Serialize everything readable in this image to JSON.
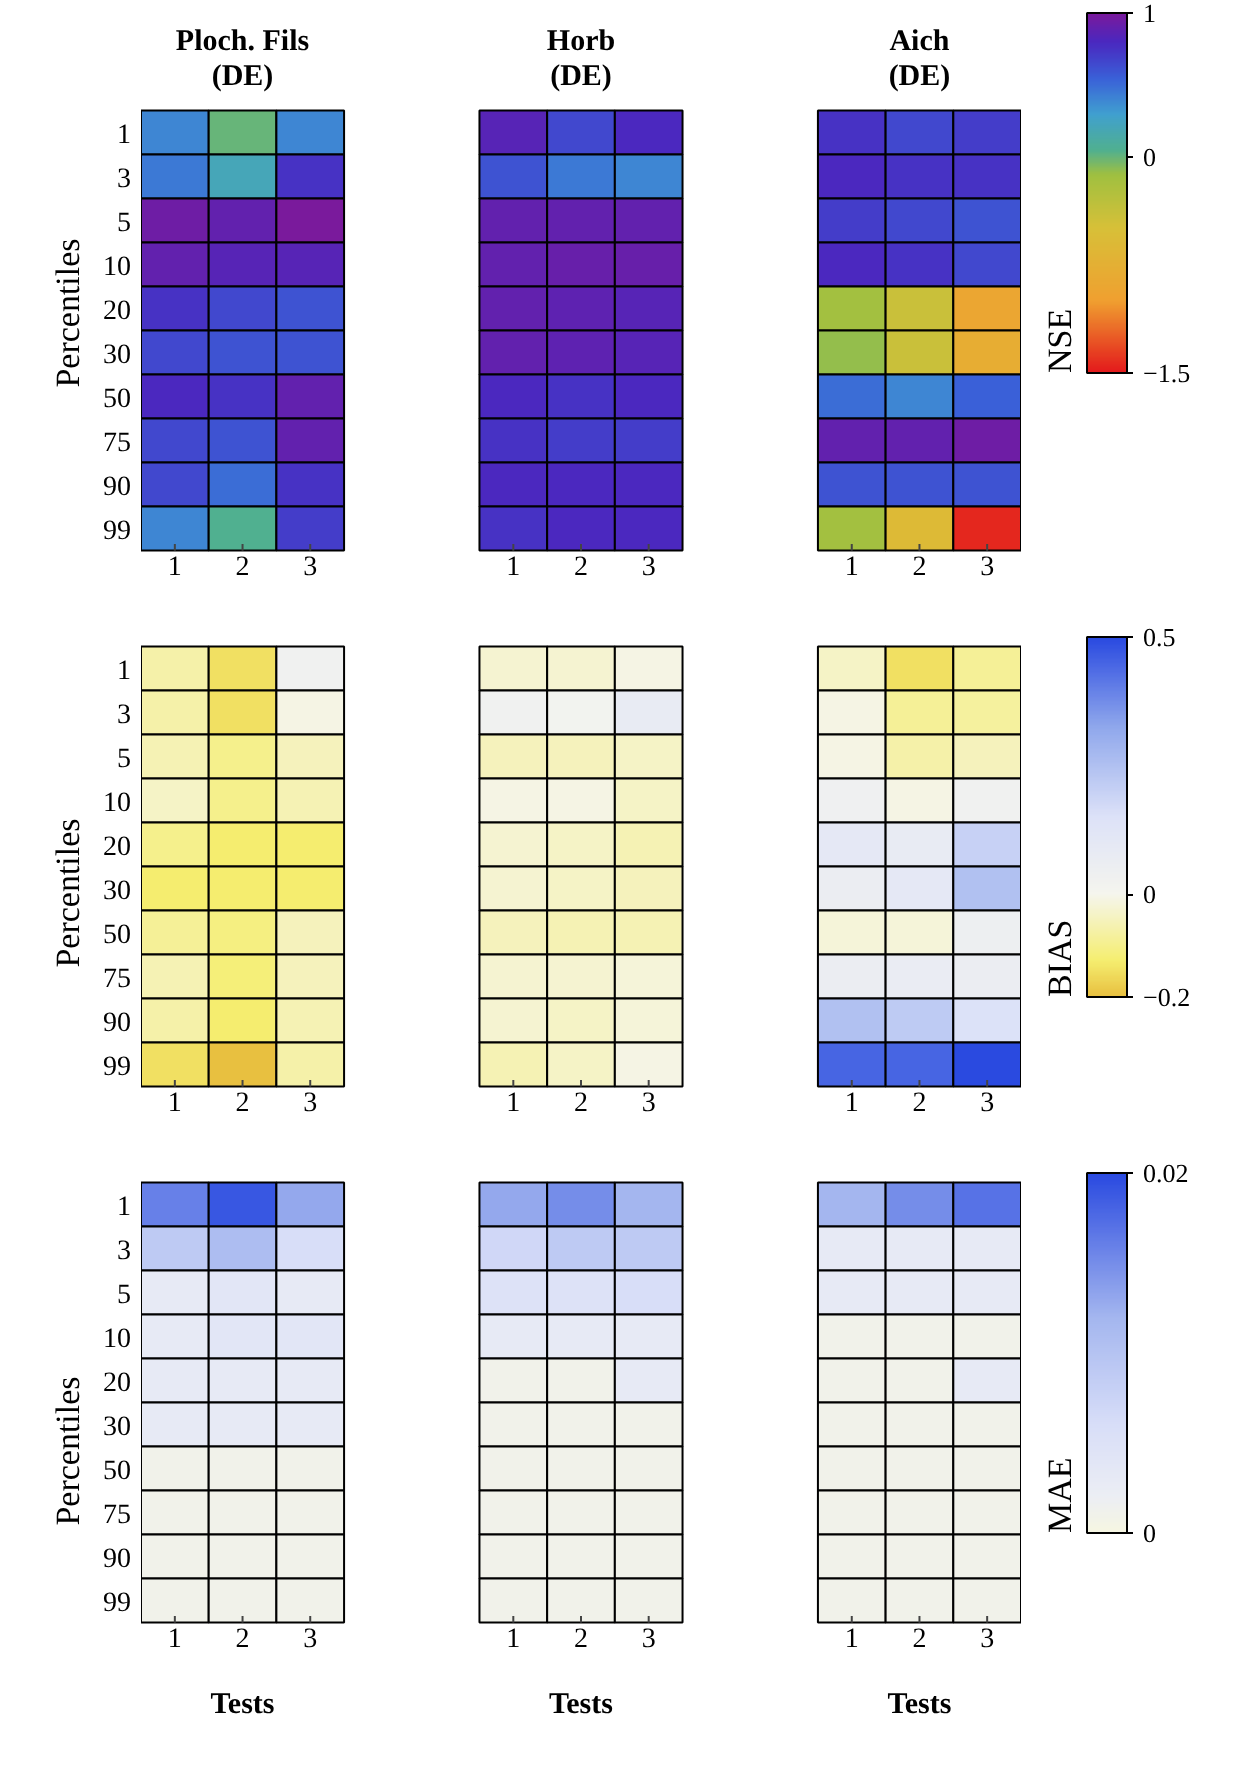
{
  "chart_data": [
    {
      "type": "heatmap",
      "ylabel": "Percentiles",
      "clabel": "NSE",
      "annotations": [
        "Ploch. Fils\n(DE)",
        "Horb\n(DE)",
        "Aich\n(DE)"
      ],
      "categories": [
        "1",
        "2",
        "3",
        null,
        null,
        "1",
        "2",
        "3",
        null,
        null,
        "1",
        "2",
        "3"
      ],
      "y_categories": [
        "1",
        "3",
        "5",
        "10",
        "20",
        "30",
        "50",
        "75",
        "90",
        "99"
      ],
      "clim": [
        -1.5,
        1
      ],
      "cticks": [
        -1.5,
        0,
        1
      ],
      "cells": [
        [
          0.4,
          0.0,
          0.4,
          null,
          null,
          0.85,
          0.65,
          0.8,
          null,
          null,
          0.75,
          0.65,
          0.7
        ],
        [
          0.45,
          0.2,
          0.75,
          null,
          null,
          0.6,
          0.45,
          0.4,
          null,
          null,
          0.8,
          0.75,
          0.75
        ],
        [
          0.95,
          0.9,
          1.0,
          null,
          null,
          0.9,
          0.9,
          0.9,
          null,
          null,
          0.7,
          0.65,
          0.6
        ],
        [
          0.9,
          0.85,
          0.85,
          null,
          null,
          0.9,
          0.92,
          0.92,
          null,
          null,
          0.8,
          0.75,
          0.65
        ],
        [
          0.75,
          0.65,
          0.6,
          null,
          null,
          0.9,
          0.88,
          0.85,
          null,
          null,
          -0.15,
          -0.4,
          -0.9
        ],
        [
          0.65,
          0.6,
          0.6,
          null,
          null,
          0.9,
          0.88,
          0.85,
          null,
          null,
          -0.1,
          -0.4,
          -0.8
        ],
        [
          0.8,
          0.75,
          0.9,
          null,
          null,
          0.8,
          0.75,
          0.8,
          null,
          null,
          0.5,
          0.4,
          0.55
        ],
        [
          0.65,
          0.6,
          0.9,
          null,
          null,
          0.75,
          0.7,
          0.7,
          null,
          null,
          0.9,
          0.9,
          0.95
        ],
        [
          0.65,
          0.5,
          0.75,
          null,
          null,
          0.8,
          0.8,
          0.8,
          null,
          null,
          0.6,
          0.6,
          0.6
        ],
        [
          0.4,
          0.05,
          0.7,
          null,
          null,
          0.75,
          0.8,
          0.8,
          null,
          null,
          -0.15,
          -0.6,
          -1.45
        ]
      ]
    },
    {
      "type": "heatmap",
      "ylabel": "Percentiles",
      "clabel": "BIAS",
      "categories": [
        "1",
        "2",
        "3",
        null,
        null,
        "1",
        "2",
        "3",
        null,
        null,
        "1",
        "2",
        "3"
      ],
      "y_categories": [
        "1",
        "3",
        "5",
        "10",
        "20",
        "30",
        "50",
        "75",
        "90",
        "99"
      ],
      "clim": [
        -0.2,
        0.5
      ],
      "cticks": [
        -0.2,
        0,
        0.5
      ],
      "cells": [
        [
          -0.07,
          -0.15,
          0.03,
          null,
          null,
          -0.03,
          -0.03,
          -0.01,
          null,
          null,
          -0.04,
          -0.15,
          -0.09
        ],
        [
          -0.07,
          -0.15,
          -0.01,
          null,
          null,
          0.03,
          0.02,
          0.08,
          null,
          null,
          -0.01,
          -0.09,
          -0.08
        ],
        [
          -0.06,
          -0.1,
          -0.05,
          null,
          null,
          -0.05,
          -0.05,
          -0.04,
          null,
          null,
          -0.01,
          -0.07,
          -0.05
        ],
        [
          -0.04,
          -0.1,
          -0.06,
          null,
          null,
          -0.01,
          -0.01,
          -0.04,
          null,
          null,
          0.04,
          -0.01,
          0.03
        ],
        [
          -0.1,
          -0.13,
          -0.13,
          null,
          null,
          -0.03,
          -0.04,
          -0.06,
          null,
          null,
          0.1,
          0.08,
          0.2
        ],
        [
          -0.13,
          -0.13,
          -0.13,
          null,
          null,
          -0.03,
          -0.04,
          -0.05,
          null,
          null,
          0.06,
          0.1,
          0.25
        ],
        [
          -0.09,
          -0.11,
          -0.05,
          null,
          null,
          -0.05,
          -0.06,
          -0.06,
          null,
          null,
          -0.02,
          -0.02,
          0.05
        ],
        [
          -0.06,
          -0.12,
          -0.05,
          null,
          null,
          -0.03,
          -0.03,
          -0.02,
          null,
          null,
          0.06,
          0.07,
          0.06
        ],
        [
          -0.07,
          -0.13,
          -0.06,
          null,
          null,
          -0.03,
          -0.04,
          -0.02,
          null,
          null,
          0.25,
          0.22,
          0.15
        ],
        [
          -0.15,
          -0.2,
          -0.07,
          null,
          null,
          -0.06,
          -0.04,
          -0.01,
          null,
          null,
          0.45,
          0.45,
          0.5
        ]
      ]
    },
    {
      "type": "heatmap",
      "ylabel": "Percentiles",
      "xlabel": "Tests",
      "clabel": "MAE",
      "categories": [
        "1",
        "2",
        "3",
        null,
        null,
        "1",
        "2",
        "3",
        null,
        null,
        "1",
        "2",
        "3"
      ],
      "y_categories": [
        "1",
        "3",
        "5",
        "10",
        "20",
        "30",
        "50",
        "75",
        "90",
        "99"
      ],
      "clim": [
        0,
        0.02
      ],
      "cticks": [
        0,
        0.02
      ],
      "cells": [
        [
          0.016,
          0.019,
          0.013,
          null,
          null,
          0.013,
          0.015,
          0.012,
          null,
          null,
          0.012,
          0.015,
          0.017
        ],
        [
          0.009,
          0.011,
          0.006,
          null,
          null,
          0.007,
          0.009,
          0.009,
          null,
          null,
          0.003,
          0.003,
          0.003
        ],
        [
          0.003,
          0.004,
          0.003,
          null,
          null,
          0.005,
          0.005,
          0.006,
          null,
          null,
          0.003,
          0.003,
          0.003
        ],
        [
          0.003,
          0.004,
          0.004,
          null,
          null,
          0.003,
          0.003,
          0.003,
          null,
          null,
          0.001,
          0.001,
          0.001
        ],
        [
          0.003,
          0.003,
          0.003,
          null,
          null,
          0.001,
          0.001,
          0.003,
          null,
          null,
          0.001,
          0.001,
          0.003
        ],
        [
          0.003,
          0.003,
          0.003,
          null,
          null,
          0.001,
          0.001,
          0.001,
          null,
          null,
          0.001,
          0.001,
          0.001
        ],
        [
          0.001,
          0.001,
          0.001,
          null,
          null,
          0.001,
          0.001,
          0.001,
          null,
          null,
          0.001,
          0.001,
          0.001
        ],
        [
          0.001,
          0.001,
          0.001,
          null,
          null,
          0.001,
          0.001,
          0.001,
          null,
          null,
          0.001,
          0.001,
          0.001
        ],
        [
          0.001,
          0.001,
          0.001,
          null,
          null,
          0.001,
          0.001,
          0.001,
          null,
          null,
          0.001,
          0.001,
          0.001
        ],
        [
          0.001,
          0.001,
          0.001,
          null,
          null,
          0.001,
          0.001,
          0.001,
          null,
          null,
          0.001,
          0.001,
          0.001
        ]
      ]
    }
  ]
}
